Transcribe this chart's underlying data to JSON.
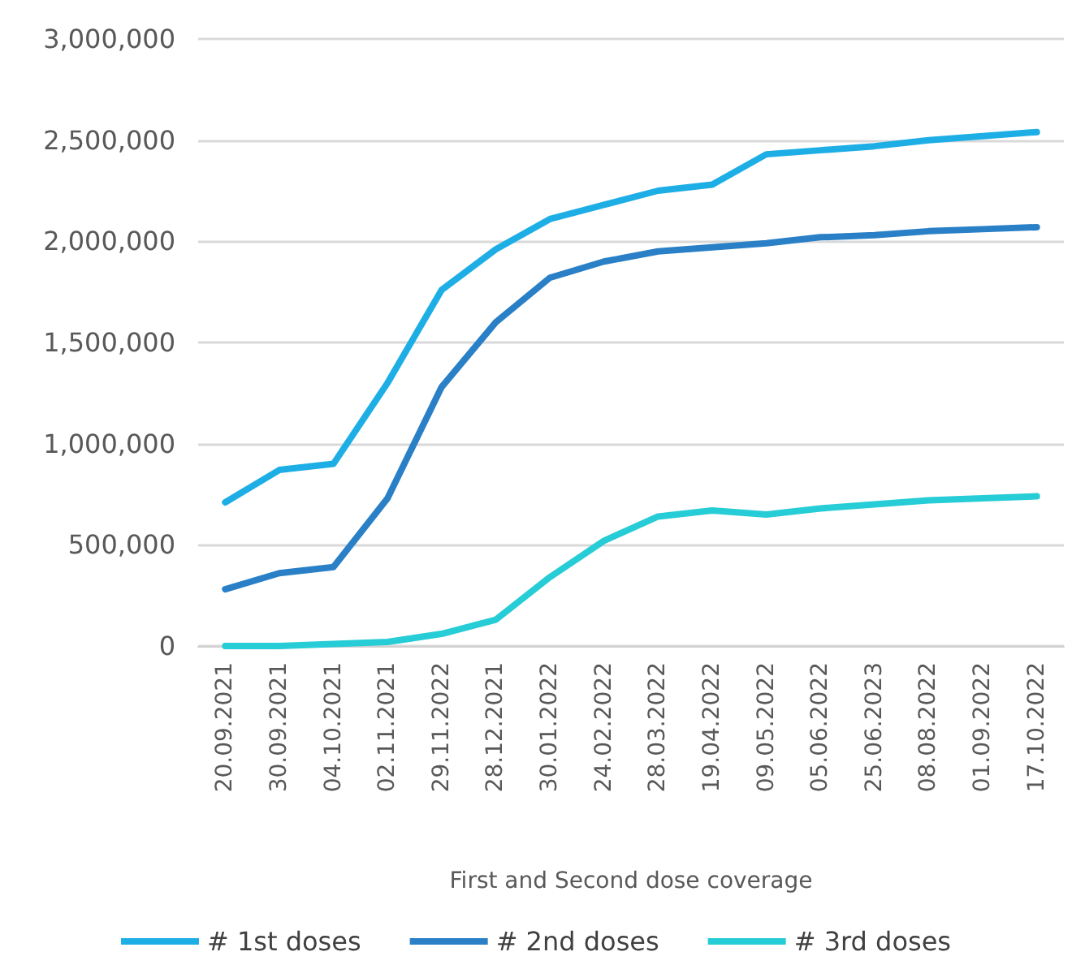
{
  "chart_data": {
    "type": "line",
    "xlabel": "First and Second dose coverage",
    "categories": [
      "20.09.2021",
      "30.09.2021",
      "04.10.2021",
      "02.11.2021",
      "29.11.2022",
      "28.12.2021",
      "30.01.2022",
      "24.02.2022",
      "28.03.2022",
      "19.04.2022",
      "09.05.2022",
      "05.06.2022",
      "25.06.2023",
      "08.08.2022",
      "01.09.2022",
      "17.10.2022"
    ],
    "series": [
      {
        "name": "# 1st doses",
        "color": "#1eaee6",
        "values": [
          710000,
          870000,
          900000,
          1300000,
          1760000,
          1960000,
          2110000,
          2180000,
          2250000,
          2280000,
          2430000,
          2450000,
          2470000,
          2500000,
          2520000,
          2540000
        ]
      },
      {
        "name": "# 2nd doses",
        "color": "#2a80c6",
        "values": [
          280000,
          360000,
          390000,
          730000,
          1280000,
          1600000,
          1820000,
          1900000,
          1950000,
          1970000,
          1990000,
          2020000,
          2030000,
          2050000,
          2060000,
          2070000
        ]
      },
      {
        "name": "# 3rd doses",
        "color": "#26ccd6",
        "values": [
          0,
          0,
          10000,
          20000,
          60000,
          130000,
          340000,
          520000,
          640000,
          670000,
          650000,
          680000,
          700000,
          720000,
          730000,
          740000
        ]
      }
    ],
    "ylim": [
      0,
      3000000
    ],
    "yticks": [
      0,
      {
        "value": 500000,
        "label": "500,000"
      },
      {
        "value": 1000000,
        "label": "1,000,000"
      },
      {
        "value": 1500000,
        "label": "1,500,000"
      },
      {
        "value": 2000000,
        "label": "2,000,000"
      },
      {
        "value": 2500000,
        "label": "2,500,000"
      },
      {
        "value": 3000000,
        "label": "3,000,000"
      }
    ],
    "grid": "y",
    "legend": "bottom",
    "marker": "none",
    "line_style": "solid"
  }
}
